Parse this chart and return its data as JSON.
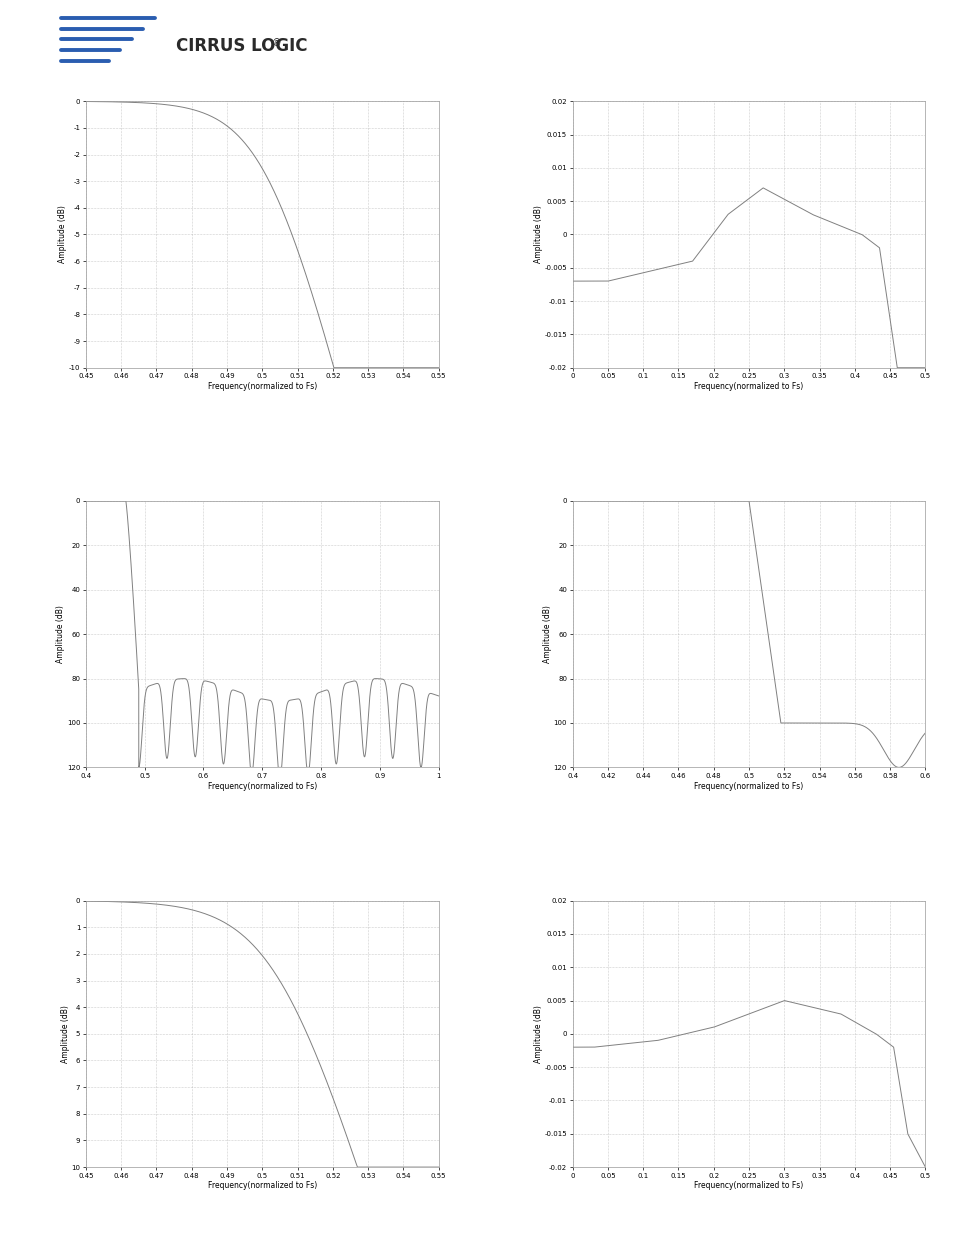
{
  "fig_width": 9.54,
  "fig_height": 12.35,
  "bg_color": "#ffffff",
  "line_color": "#808080",
  "grid_color": "#999999",
  "grid_style": "dotted",
  "plots": [
    {
      "row": 0,
      "col": 0,
      "xlabel": "Frequency(normalized to Fs)",
      "ylabel": "Amplitude (dB)",
      "xlim": [
        0.45,
        0.55
      ],
      "ylim": [
        -10,
        0
      ],
      "xticks": [
        0.45,
        0.46,
        0.47,
        0.48,
        0.49,
        0.5,
        0.51,
        0.52,
        0.53,
        0.54,
        0.55
      ],
      "yticks": [
        0,
        -1,
        -2,
        -3,
        -4,
        -5,
        -6,
        -7,
        -8,
        -9,
        -10
      ],
      "xtick_labels": [
        "0.45",
        "0.46",
        "0.47",
        "0.48",
        "0.49",
        "0.5",
        "0.51",
        "0.52",
        "0.53",
        "0.54",
        "0.55"
      ],
      "ytick_labels": [
        "0",
        "-1",
        "-2",
        "-3",
        "-4",
        "-5",
        "-6",
        "-7",
        "-8",
        "-9",
        "-10"
      ],
      "curve_type": "transition_slow"
    },
    {
      "row": 0,
      "col": 1,
      "xlabel": "Frequency(normalized to Fs)",
      "ylabel": "Amplitude (dB)",
      "xlim": [
        0,
        0.5
      ],
      "ylim": [
        -0.02,
        0.02
      ],
      "xticks": [
        0,
        0.05,
        0.1,
        0.15,
        0.2,
        0.25,
        0.3,
        0.35,
        0.4,
        0.45,
        0.5
      ],
      "yticks": [
        0.02,
        0.015,
        0.01,
        0.005,
        0,
        -0.005,
        -0.01,
        -0.015,
        -0.02
      ],
      "xtick_labels": [
        "0",
        "0.05",
        "0.1",
        "0.15",
        "0.2",
        "0.25",
        "0.3",
        "0.35",
        "0.4",
        "0.45",
        "0.5"
      ],
      "ytick_labels": [
        "0.02",
        "0.015",
        "0.01",
        "0.005",
        "0",
        "-0.005",
        "-0.01",
        "-0.015",
        "-0.02"
      ],
      "curve_type": "passband_ripple_slow"
    },
    {
      "row": 1,
      "col": 0,
      "xlabel": "Frequency(normalized to Fs)",
      "ylabel": "Amplitude (dB)",
      "xlim": [
        0.4,
        1.0
      ],
      "ylim": [
        -120,
        0
      ],
      "xticks": [
        0.4,
        0.5,
        0.6,
        0.7,
        0.8,
        0.9,
        1.0
      ],
      "yticks": [
        0,
        -20,
        -40,
        -60,
        -80,
        -100,
        -120
      ],
      "xtick_labels": [
        "0.4",
        "0.5",
        "0.6",
        "0.7",
        "0.8",
        "0.9",
        "1"
      ],
      "ytick_labels": [
        "0",
        "20",
        "40",
        "60",
        "80",
        "100",
        "120"
      ],
      "curve_type": "stopband_slow"
    },
    {
      "row": 1,
      "col": 1,
      "xlabel": "Frequency(normalized to Fs)",
      "ylabel": "Amplitude (dB)",
      "xlim": [
        0.4,
        0.6
      ],
      "ylim": [
        -120,
        0
      ],
      "xticks": [
        0.4,
        0.42,
        0.44,
        0.46,
        0.48,
        0.5,
        0.52,
        0.54,
        0.56,
        0.58,
        0.6
      ],
      "yticks": [
        0,
        -20,
        -40,
        -60,
        -80,
        -100,
        -120
      ],
      "xtick_labels": [
        "0.4",
        "0.42",
        "0.44",
        "0.46",
        "0.48",
        "0.5",
        "0.52",
        "0.54",
        "0.56",
        "0.58",
        "0.6"
      ],
      "ytick_labels": [
        "0",
        "20",
        "40",
        "60",
        "80",
        "100",
        "120"
      ],
      "curve_type": "transition_fast"
    },
    {
      "row": 2,
      "col": 0,
      "xlabel": "Frequency(normalized to Fs)",
      "ylabel": "Amplitude (dB)",
      "xlim": [
        0.45,
        0.55
      ],
      "ylim": [
        -10,
        0
      ],
      "xticks": [
        0.45,
        0.46,
        0.47,
        0.48,
        0.49,
        0.5,
        0.51,
        0.52,
        0.53,
        0.54,
        0.55
      ],
      "yticks": [
        0,
        -1,
        -2,
        -3,
        -4,
        -5,
        -6,
        -7,
        -8,
        -9,
        -10
      ],
      "xtick_labels": [
        "0.45",
        "0.46",
        "0.47",
        "0.48",
        "0.49",
        "0.5",
        "0.51",
        "0.52",
        "0.53",
        "0.54",
        "0.55"
      ],
      "ytick_labels": [
        "0",
        "1",
        "2",
        "3",
        "4",
        "5",
        "6",
        "7",
        "8",
        "9",
        "10"
      ],
      "curve_type": "transition_fast_passband"
    },
    {
      "row": 2,
      "col": 1,
      "xlabel": "Frequency(normalized to Fs)",
      "ylabel": "Amplitude (dB)",
      "xlim": [
        0,
        0.5
      ],
      "ylim": [
        -0.02,
        0.02
      ],
      "xticks": [
        0,
        0.05,
        0.1,
        0.15,
        0.2,
        0.25,
        0.3,
        0.35,
        0.4,
        0.45,
        0.5
      ],
      "yticks": [
        0.02,
        0.015,
        0.01,
        0.005,
        0,
        -0.005,
        -0.01,
        -0.015,
        -0.02
      ],
      "xtick_labels": [
        "0",
        "0.05",
        "0.1",
        "0.15",
        "0.2",
        "0.25",
        "0.3",
        "0.35",
        "0.4",
        "0.45",
        "0.5"
      ],
      "ytick_labels": [
        "0.02",
        "0.015",
        "0.01",
        "0.005",
        "0",
        "-0.005",
        "-0.01",
        "-0.015",
        "-0.02"
      ],
      "curve_type": "passband_ripple_fast"
    }
  ]
}
